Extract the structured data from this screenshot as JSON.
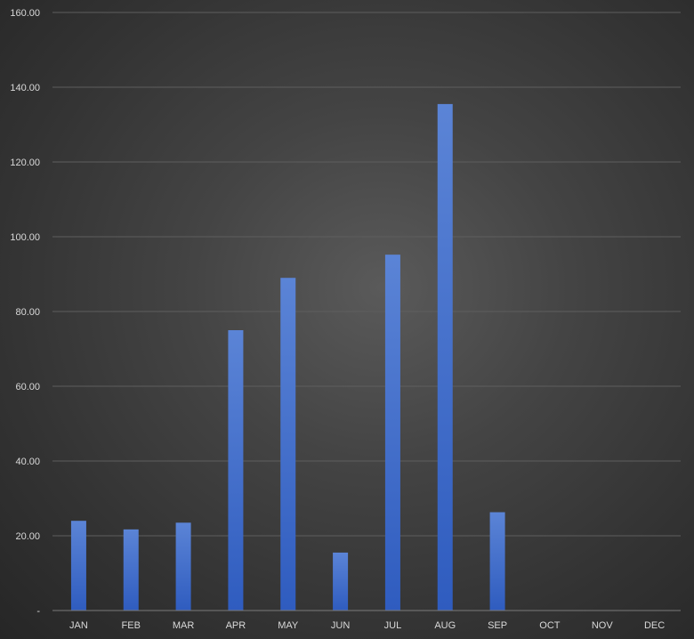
{
  "chart_data": {
    "type": "bar",
    "title": "",
    "xlabel": "",
    "ylabel": "",
    "categories": [
      "JAN",
      "FEB",
      "MAR",
      "APR",
      "MAY",
      "JUN",
      "JUL",
      "AUG",
      "SEP",
      "OCT",
      "NOV",
      "DEC"
    ],
    "values": [
      24,
      21.7,
      23.5,
      75,
      89,
      15.5,
      95.2,
      135.5,
      26.3,
      null,
      null,
      null
    ],
    "ylim": [
      0,
      160
    ],
    "yticks": [
      0,
      20,
      40,
      60,
      80,
      100,
      120,
      140,
      160
    ],
    "ytick_labels": [
      "-",
      "20.00",
      "40.00",
      "60.00",
      "80.00",
      "100.00",
      "120.00",
      "140.00",
      "160.00"
    ],
    "grid": true,
    "legend": "none",
    "colors": {
      "bar_top": "#5b84d6",
      "bar_bottom": "#2f5cbf",
      "grid": "#5e5e5e",
      "text": "#d9d9d9"
    }
  }
}
